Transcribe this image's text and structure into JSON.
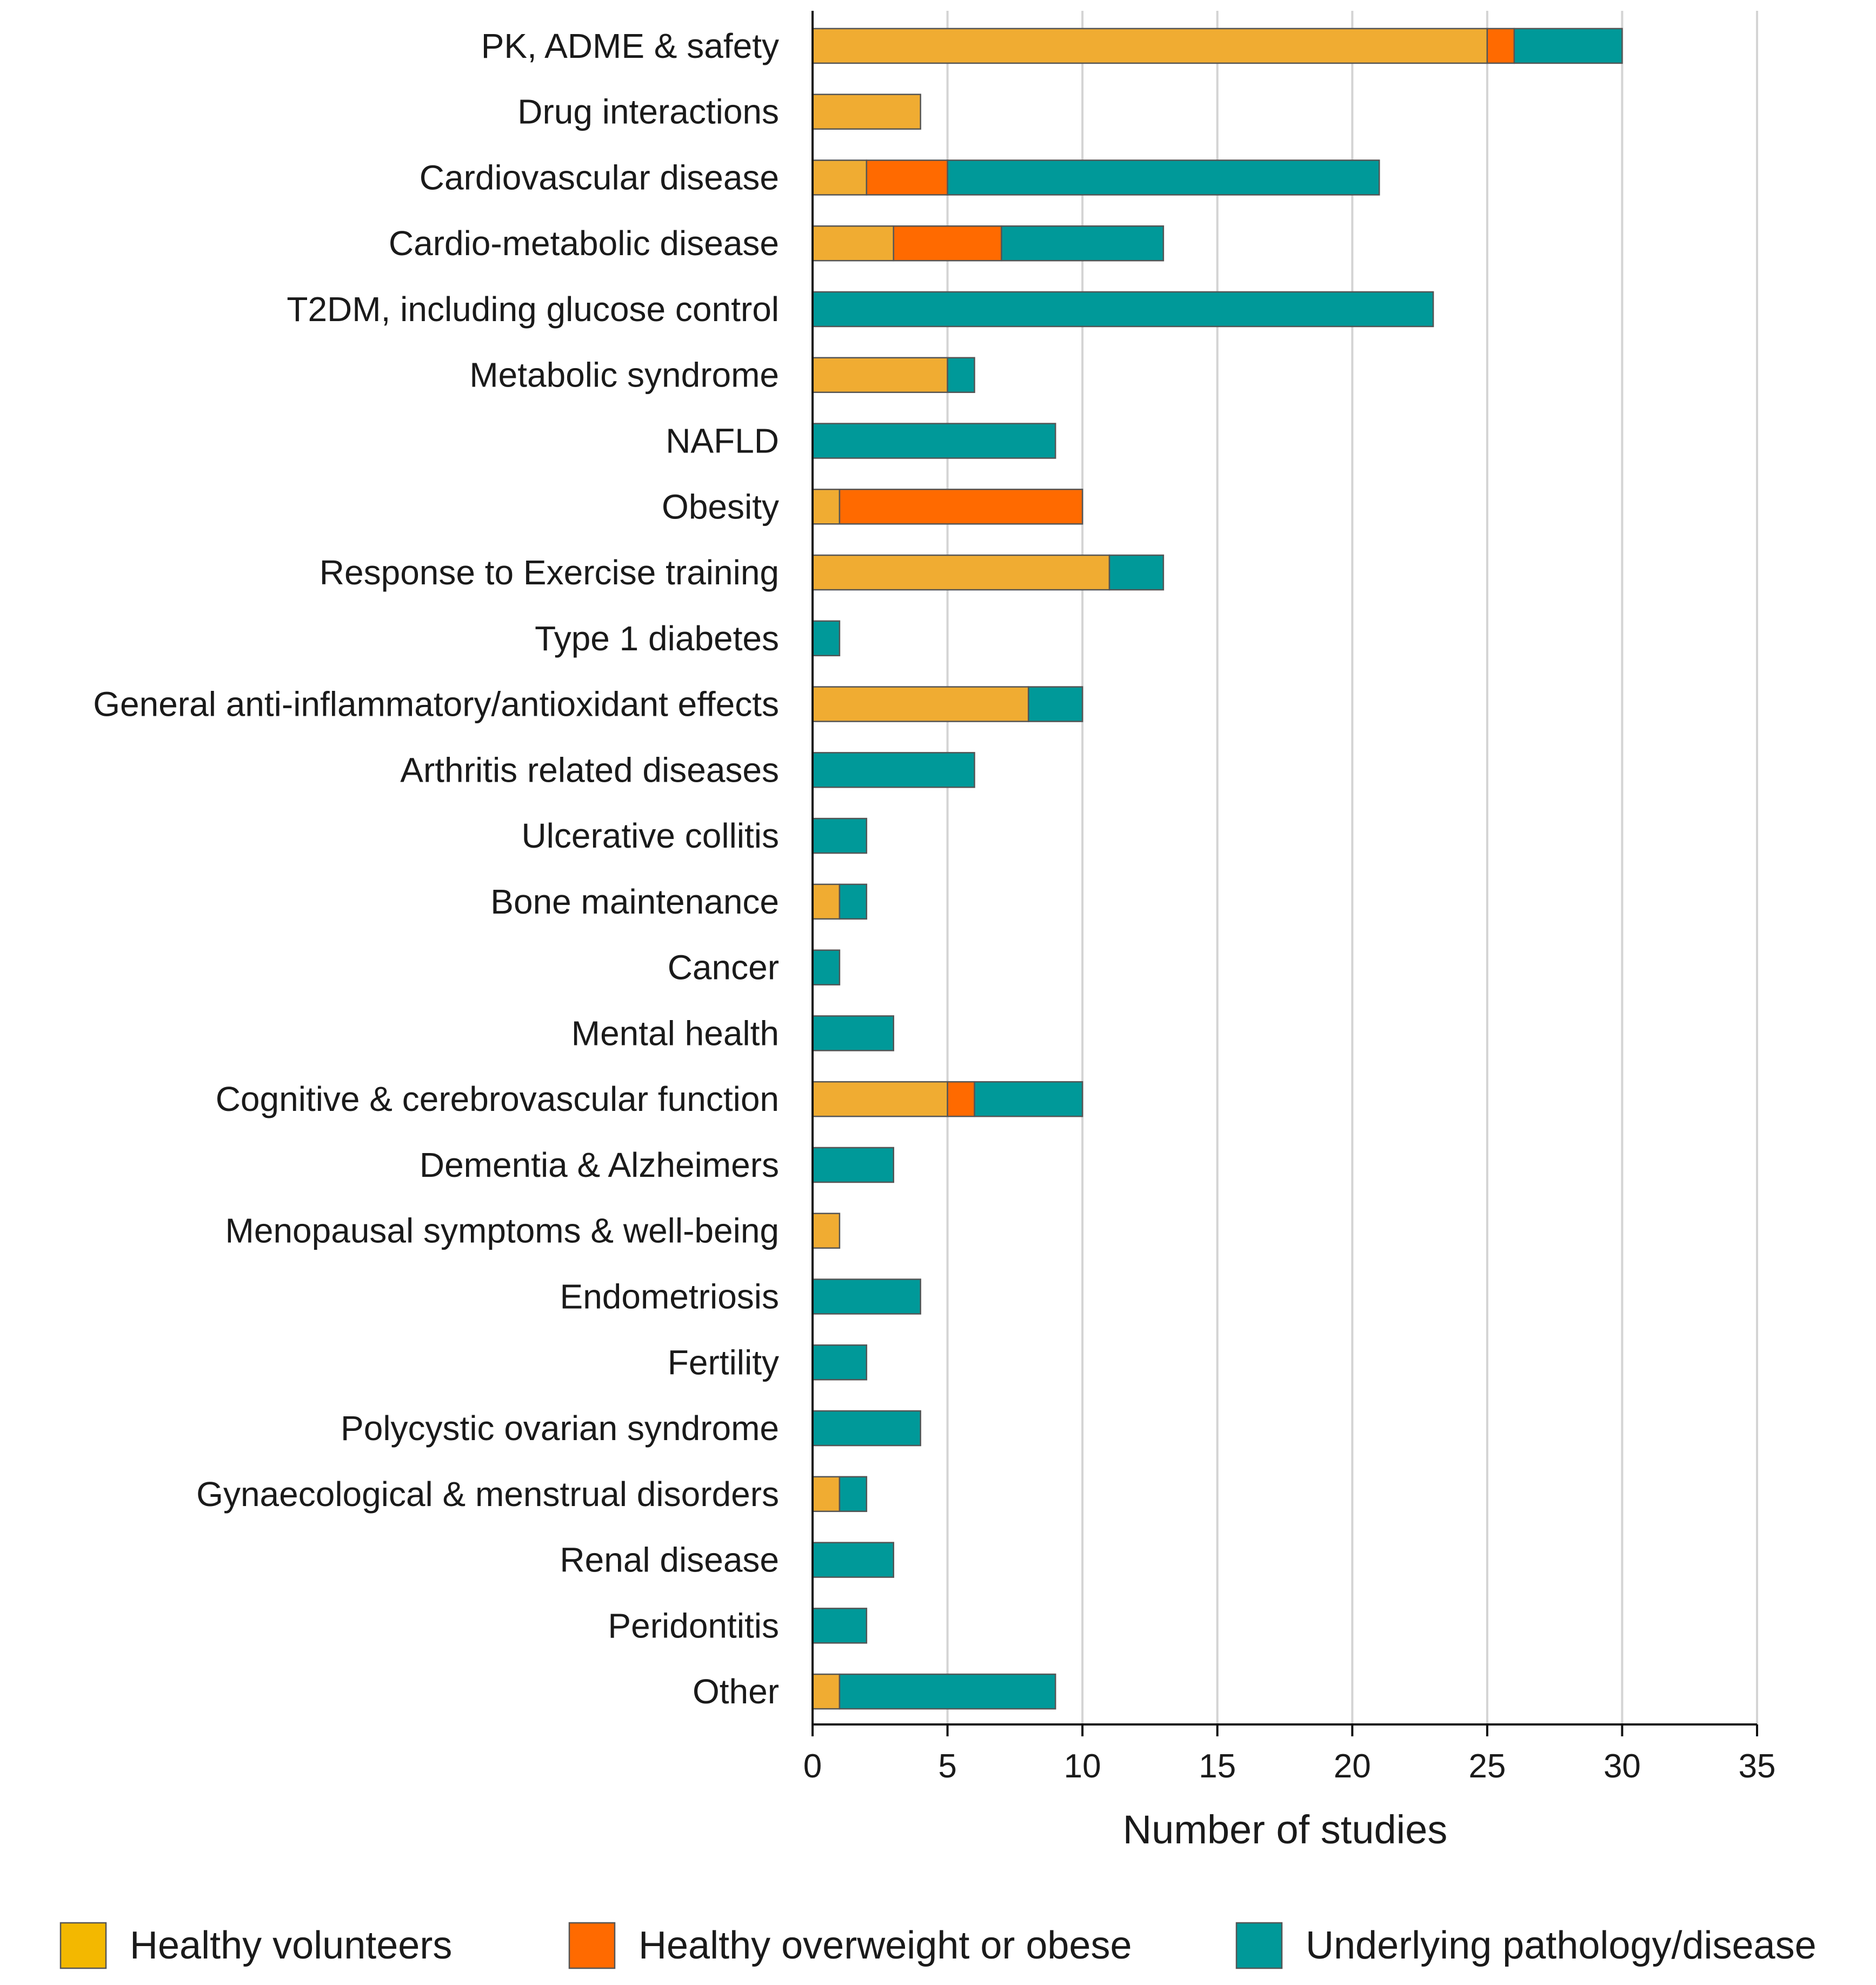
{
  "chart_data": {
    "type": "bar",
    "orientation": "horizontal",
    "stacked": true,
    "title": "",
    "xlabel": "Number of studies",
    "ylabel": "",
    "xlim": [
      0,
      35
    ],
    "xticks": [
      0,
      5,
      10,
      15,
      20,
      25,
      30,
      35
    ],
    "grid": "vertical",
    "legend_position": "bottom",
    "categories": [
      "PK, ADME & safety",
      "Drug interactions",
      "Cardiovascular disease",
      "Cardio-metabolic disease",
      "T2DM, including glucose control",
      "Metabolic syndrome",
      "NAFLD",
      "Obesity",
      "Response to Exercise training",
      "Type 1 diabetes",
      "General anti-inflammatory/antioxidant effects",
      "Arthritis related diseases",
      "Ulcerative collitis",
      "Bone maintenance",
      "Cancer",
      "Mental health",
      "Cognitive & cerebrovascular function",
      "Dementia & Alzheimers",
      "Menopausal symptoms & well-being",
      "Endometriosis",
      "Fertility",
      "Polycystic ovarian syndrome",
      "Gynaecological & menstrual disorders",
      "Renal disease",
      "Peridontitis",
      "Other"
    ],
    "series": [
      {
        "name": "Healthy volunteers",
        "bar_color": "#F0AC32",
        "legend_color": "#F3B800",
        "values": [
          25,
          4,
          2,
          3,
          0,
          5,
          0,
          1,
          11,
          0,
          8,
          0,
          0,
          1,
          0,
          0,
          5,
          0,
          1,
          0,
          0,
          0,
          1,
          0,
          0,
          1
        ]
      },
      {
        "name": "Healthy overweight or obese",
        "bar_color": "#FF6A00",
        "legend_color": "#FF6A00",
        "values": [
          1,
          0,
          3,
          4,
          0,
          0,
          0,
          9,
          0,
          0,
          0,
          0,
          0,
          0,
          0,
          0,
          1,
          0,
          0,
          0,
          0,
          0,
          0,
          0,
          0,
          0
        ]
      },
      {
        "name": "Underlying pathology/disease",
        "bar_color": "#009999",
        "legend_color": "#009999",
        "values": [
          4,
          0,
          16,
          6,
          23,
          1,
          9,
          0,
          2,
          1,
          2,
          6,
          2,
          1,
          1,
          3,
          4,
          3,
          0,
          4,
          2,
          4,
          1,
          3,
          2,
          8
        ]
      }
    ]
  }
}
